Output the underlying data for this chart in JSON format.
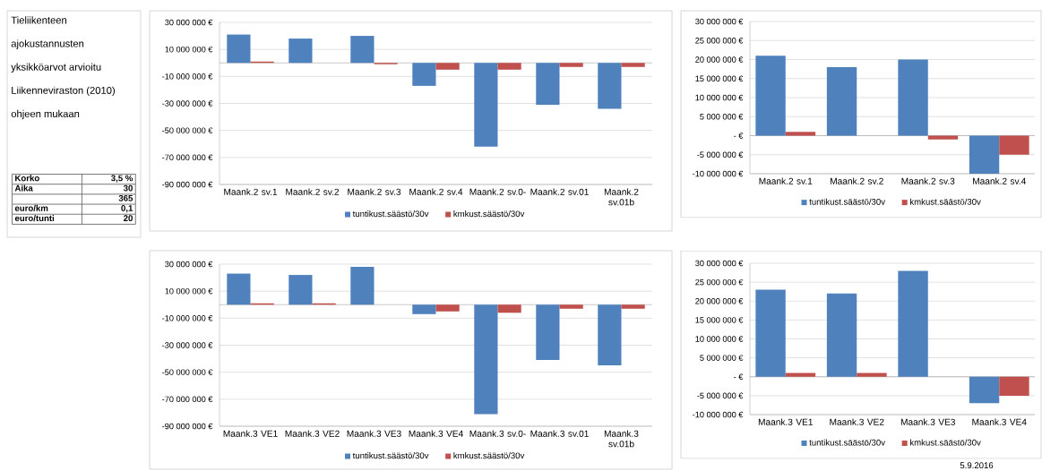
{
  "chart_data": [
    {
      "type": "other",
      "title": "Tieliikenteen ajokustannusten yksikköarvot arvioitu Liikenneviraston (2010) ohjeen mukaan",
      "categories": [
        "Korko",
        "Aika",
        null,
        "euro/km",
        "euro/tunti"
      ],
      "value_labels": [
        "3,5 %",
        "30",
        "365",
        "0,1",
        "20"
      ]
    },
    {
      "type": "bar",
      "categories": [
        "Maank.2 sv.1",
        "Maank.2 sv.2",
        "Maank.2 sv.3",
        "Maank.2 sv.4",
        "Maank.2 sv.0-",
        "Maank.2 sv.01",
        "Maank.2 sv.01b"
      ],
      "series": [
        {
          "name": "tuntikust.säästö/30v",
          "color": "#4f81bd",
          "values": [
            21000000,
            18000000,
            20000000,
            -17000000,
            -62000000,
            -31000000,
            -34000000
          ]
        },
        {
          "name": "kmkust.säästö/30v",
          "color": "#c0504d",
          "values": [
            1000000,
            0,
            -1000000,
            -5000000,
            -5000000,
            -3000000,
            -3000000
          ]
        }
      ],
      "ylim": [
        -90000000,
        30000000
      ],
      "yticks": [
        {
          "value": -90000000,
          "label": "-90 000 000 €"
        },
        {
          "value": -70000000,
          "label": "-70 000 000 €"
        },
        {
          "value": -50000000,
          "label": "-50 000 000 €"
        },
        {
          "value": -30000000,
          "label": "-30 000 000 €"
        },
        {
          "value": -10000000,
          "label": "-10 000 000 €"
        },
        {
          "value": 10000000,
          "label": "10 000 000 €"
        },
        {
          "value": 30000000,
          "label": "30 000 000 €"
        }
      ],
      "grid": "y",
      "legend": "bottom"
    },
    {
      "type": "bar",
      "categories": [
        "Maank.2 sv.1",
        "Maank.2 sv.2",
        "Maank.2 sv.3",
        "Maank.2 sv.4"
      ],
      "series": [
        {
          "name": "tuntikust.säästö/30v",
          "color": "#4f81bd",
          "values": [
            21000000,
            18000000,
            20000000,
            -10000000
          ]
        },
        {
          "name": "kmkust.säästö/30v",
          "color": "#c0504d",
          "values": [
            1000000,
            0,
            -1000000,
            -5000000
          ]
        }
      ],
      "ylim": [
        -10000000,
        30000000
      ],
      "yticks": [
        {
          "value": -10000000,
          "label": "-10 000 000 €"
        },
        {
          "value": -5000000,
          "label": "-5 000 000 €"
        },
        {
          "value": 0,
          "label": "- €"
        },
        {
          "value": 5000000,
          "label": "5 000 000 €"
        },
        {
          "value": 10000000,
          "label": "10 000 000 €"
        },
        {
          "value": 15000000,
          "label": "15 000 000 €"
        },
        {
          "value": 20000000,
          "label": "20 000 000 €"
        },
        {
          "value": 25000000,
          "label": "25 000 000 €"
        },
        {
          "value": 30000000,
          "label": "30 000 000 €"
        }
      ],
      "grid": "y",
      "legend": "bottom"
    },
    {
      "type": "bar",
      "categories": [
        "Maank.3 VE1",
        "Maank.3 VE2",
        "Maank.3 VE3",
        "Maank.3 VE4",
        "Maank.3 sv.0-",
        "Maank.3 sv.01",
        "Maank.3 sv.01b"
      ],
      "series": [
        {
          "name": "tuntikust.säästö/30v",
          "color": "#4f81bd",
          "values": [
            23000000,
            22000000,
            28000000,
            -7000000,
            -81000000,
            -41000000,
            -45000000
          ]
        },
        {
          "name": "kmkust.säästö/30v",
          "color": "#c0504d",
          "values": [
            1000000,
            1000000,
            0,
            -5000000,
            -6000000,
            -3000000,
            -3000000
          ]
        }
      ],
      "ylim": [
        -90000000,
        30000000
      ],
      "yticks": [
        {
          "value": -90000000,
          "label": "-90 000 000 €"
        },
        {
          "value": -70000000,
          "label": "-70 000 000 €"
        },
        {
          "value": -50000000,
          "label": "-50 000 000 €"
        },
        {
          "value": -30000000,
          "label": "-30 000 000 €"
        },
        {
          "value": -10000000,
          "label": "-10 000 000 €"
        },
        {
          "value": 10000000,
          "label": "10 000 000 €"
        },
        {
          "value": 30000000,
          "label": "30 000 000 €"
        }
      ],
      "grid": "y",
      "legend": "bottom"
    },
    {
      "type": "bar",
      "categories": [
        "Maank.3 VE1",
        "Maank.3 VE2",
        "Maank.3 VE3",
        "Maank.3 VE4"
      ],
      "series": [
        {
          "name": "tuntikust.säästö/30v",
          "color": "#4f81bd",
          "values": [
            23000000,
            22000000,
            28000000,
            -7000000
          ]
        },
        {
          "name": "kmkust.säästö/30v",
          "color": "#c0504d",
          "values": [
            1000000,
            1000000,
            0,
            -5000000
          ]
        }
      ],
      "ylim": [
        -10000000,
        30000000
      ],
      "yticks": [
        {
          "value": -10000000,
          "label": "-10 000 000 €"
        },
        {
          "value": -5000000,
          "label": "-5 000 000 €"
        },
        {
          "value": 0,
          "label": "- €"
        },
        {
          "value": 5000000,
          "label": "5 000 000 €"
        },
        {
          "value": 10000000,
          "label": "10 000 000 €"
        },
        {
          "value": 15000000,
          "label": "15 000 000 €"
        },
        {
          "value": 20000000,
          "label": "20 000 000 €"
        },
        {
          "value": 25000000,
          "label": "25 000 000 €"
        },
        {
          "value": 30000000,
          "label": "30 000 000 €"
        }
      ],
      "grid": "y",
      "legend": "bottom",
      "annotations": [
        "5.9.2016"
      ]
    }
  ]
}
